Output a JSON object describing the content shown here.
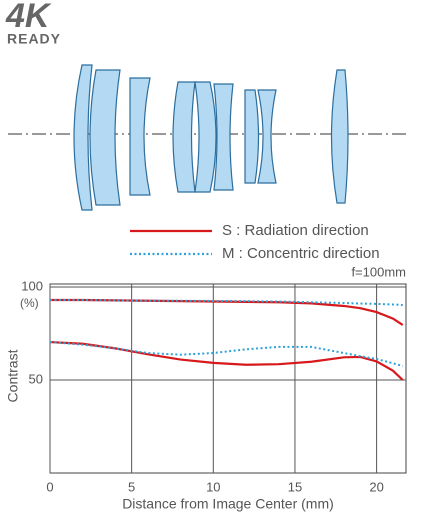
{
  "logo": {
    "main": "4K",
    "sub": "READY"
  },
  "chart_data": {
    "type": "line",
    "annotation": "f=100mm",
    "y_unit": "(%)",
    "xlabel": "Distance from Image Center (mm)",
    "ylabel": "Contrast",
    "x": [
      0,
      2,
      4,
      6,
      8,
      10,
      12,
      14,
      16,
      18,
      19,
      20,
      21,
      21.6
    ],
    "series": [
      {
        "name": "S : Radiation direction",
        "color": "#d7191c",
        "dash": "solid",
        "curves": [
          [
            93,
            93,
            92.8,
            92.6,
            92.4,
            92.2,
            92,
            91.8,
            91.2,
            89.8,
            88.6,
            86.5,
            83,
            79.6
          ],
          [
            70.4,
            69.5,
            67,
            63.8,
            61,
            59.2,
            58.2,
            58.5,
            59.8,
            62.2,
            62.4,
            60,
            55,
            50
          ]
        ]
      },
      {
        "name": "M : Concentric direction",
        "color": "#2ba3d8",
        "dash": "dotted",
        "curves": [
          [
            93,
            93,
            92.8,
            92.6,
            92.6,
            92.5,
            92.4,
            92.2,
            91.8,
            91.4,
            91.1,
            90.9,
            90.6,
            90.3
          ],
          [
            70.4,
            69,
            67,
            64.5,
            63.6,
            64.5,
            66.5,
            67.8,
            67.8,
            64.5,
            62.8,
            61.3,
            59,
            57.5
          ]
        ]
      }
    ],
    "xlim": [
      0,
      21.8
    ],
    "xticks": [
      0,
      5,
      10,
      15,
      20
    ],
    "ylim": [
      0,
      100
    ],
    "yticks": [
      50,
      100
    ],
    "grid": true
  }
}
